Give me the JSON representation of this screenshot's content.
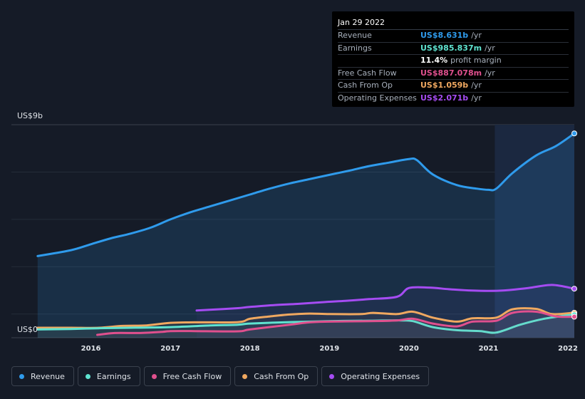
{
  "tooltip": {
    "date": "Jan 29 2022",
    "rows": [
      {
        "label": "Revenue",
        "value": "US$8.631b",
        "unit": "/yr",
        "color": "#2f9bec"
      },
      {
        "label": "Earnings",
        "value": "US$985.837m",
        "unit": "/yr",
        "color": "#5fe3d0"
      },
      {
        "label": "",
        "value": "11.4%",
        "unit": "profit margin",
        "color": "#ffffff"
      },
      {
        "label": "Free Cash Flow",
        "value": "US$887.078m",
        "unit": "/yr",
        "color": "#e0508e"
      },
      {
        "label": "Cash From Op",
        "value": "US$1.059b",
        "unit": "/yr",
        "color": "#f0a860"
      },
      {
        "label": "Operating Expenses",
        "value": "US$2.071b",
        "unit": "/yr",
        "color": "#a54cf2"
      }
    ]
  },
  "legend": [
    {
      "label": "Revenue",
      "color": "#2f9bec"
    },
    {
      "label": "Earnings",
      "color": "#5fe3d0"
    },
    {
      "label": "Free Cash Flow",
      "color": "#e0508e"
    },
    {
      "label": "Cash From Op",
      "color": "#f0a860"
    },
    {
      "label": "Operating Expenses",
      "color": "#a54cf2"
    }
  ],
  "chart_data": {
    "type": "line",
    "title": "",
    "y_top_label": "US$9b",
    "y_bottom_label": "US$0",
    "ylim": [
      0,
      9
    ],
    "xlim": [
      2015.3,
      2022.1
    ],
    "x_ticks": [
      "2016",
      "2017",
      "2018",
      "2019",
      "2020",
      "2021",
      "2022"
    ],
    "x_tick_values": [
      2016,
      2017,
      2018,
      2019,
      2020,
      2021,
      2022
    ],
    "highlight_from": 2021.08,
    "series": [
      {
        "name": "Revenue",
        "color": "#2f9bec",
        "fill": true,
        "x": [
          2015.33,
          2015.75,
          2016.0,
          2016.25,
          2016.5,
          2016.75,
          2017.0,
          2017.25,
          2017.5,
          2017.75,
          2018.0,
          2018.25,
          2018.5,
          2018.75,
          2019.0,
          2019.25,
          2019.5,
          2019.75,
          2020.0,
          2020.1,
          2020.3,
          2020.6,
          2020.85,
          2021.0,
          2021.1,
          2021.3,
          2021.6,
          2021.85,
          2022.08
        ],
        "values": [
          3.45,
          3.7,
          3.95,
          4.2,
          4.4,
          4.65,
          5.0,
          5.3,
          5.55,
          5.8,
          6.05,
          6.3,
          6.52,
          6.7,
          6.88,
          7.06,
          7.25,
          7.4,
          7.55,
          7.5,
          6.9,
          6.45,
          6.3,
          6.25,
          6.3,
          6.95,
          7.7,
          8.1,
          8.631
        ]
      },
      {
        "name": "Operating Expenses",
        "color": "#a54cf2",
        "fill": false,
        "x": [
          2017.33,
          2017.6,
          2017.85,
          2018.0,
          2018.3,
          2018.6,
          2018.9,
          2019.2,
          2019.5,
          2019.85,
          2020.0,
          2020.25,
          2020.5,
          2020.75,
          2021.0,
          2021.2,
          2021.5,
          2021.8,
          2022.08
        ],
        "values": [
          1.15,
          1.2,
          1.25,
          1.3,
          1.38,
          1.43,
          1.5,
          1.56,
          1.63,
          1.73,
          2.1,
          2.12,
          2.05,
          2.0,
          1.98,
          2.0,
          2.1,
          2.23,
          2.071
        ]
      },
      {
        "name": "Cash From Op",
        "color": "#f0a860",
        "fill": false,
        "x": [
          2015.33,
          2015.75,
          2016.1,
          2016.4,
          2016.7,
          2017.0,
          2017.3,
          2017.85,
          2018.0,
          2018.25,
          2018.5,
          2018.75,
          2019.0,
          2019.4,
          2019.55,
          2019.85,
          2020.05,
          2020.3,
          2020.6,
          2020.8,
          2021.1,
          2021.3,
          2021.6,
          2021.8,
          2022.08
        ],
        "values": [
          0.42,
          0.42,
          0.42,
          0.5,
          0.52,
          0.63,
          0.65,
          0.66,
          0.8,
          0.9,
          0.98,
          1.02,
          1.0,
          1.0,
          1.05,
          1.0,
          1.1,
          0.85,
          0.68,
          0.82,
          0.85,
          1.2,
          1.22,
          1.0,
          1.059
        ]
      },
      {
        "name": "Earnings",
        "color": "#5fe3d0",
        "fill": false,
        "x": [
          2015.33,
          2015.75,
          2016.1,
          2016.5,
          2017.0,
          2017.5,
          2017.85,
          2018.0,
          2018.5,
          2019.0,
          2019.5,
          2019.9,
          2020.05,
          2020.3,
          2020.6,
          2020.9,
          2021.1,
          2021.4,
          2021.7,
          2022.08
        ],
        "values": [
          0.35,
          0.37,
          0.4,
          0.42,
          0.45,
          0.52,
          0.55,
          0.6,
          0.66,
          0.7,
          0.72,
          0.73,
          0.7,
          0.45,
          0.32,
          0.28,
          0.22,
          0.55,
          0.8,
          0.986
        ]
      },
      {
        "name": "Free Cash Flow",
        "color": "#e0508e",
        "fill": false,
        "x": [
          2016.08,
          2016.3,
          2016.6,
          2016.9,
          2017.0,
          2017.3,
          2017.85,
          2018.0,
          2018.5,
          2018.75,
          2019.0,
          2019.5,
          2019.85,
          2020.05,
          2020.3,
          2020.6,
          2020.8,
          2021.1,
          2021.3,
          2021.6,
          2021.85,
          2022.08
        ],
        "values": [
          0.12,
          0.2,
          0.2,
          0.25,
          0.28,
          0.28,
          0.27,
          0.35,
          0.55,
          0.65,
          0.68,
          0.7,
          0.73,
          0.8,
          0.6,
          0.48,
          0.68,
          0.72,
          1.05,
          1.1,
          0.9,
          0.887
        ]
      }
    ]
  }
}
